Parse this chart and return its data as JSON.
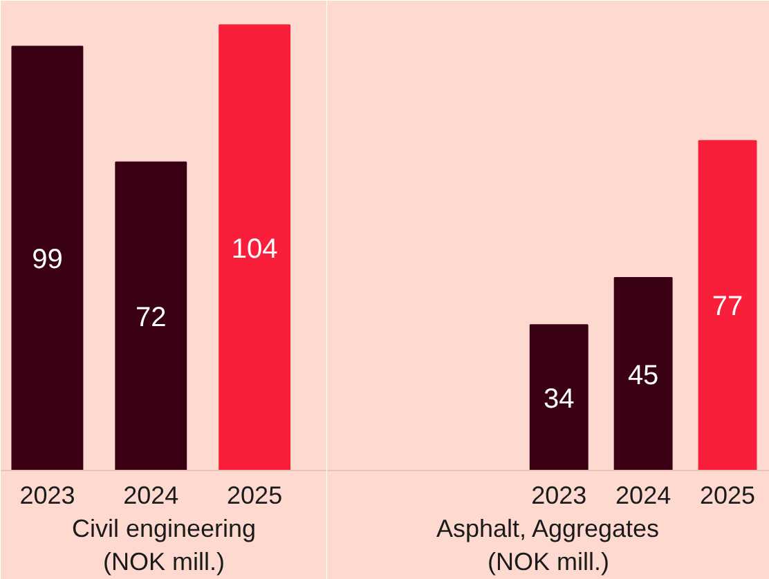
{
  "chart_data": [
    {
      "type": "bar",
      "xlabel": "Civil engineering\n(NOK mill.)",
      "categories": [
        "2023",
        "2024",
        "2025"
      ],
      "values": [
        99,
        72,
        104
      ],
      "colors": [
        "#3a0014",
        "#3a0014",
        "#f91f3a"
      ],
      "data_labels": true,
      "tick_labels": "x",
      "grid": false
    },
    {
      "type": "bar",
      "xlabel": "Asphalt, Aggregates\n(NOK mill.)",
      "categories": [
        "2023",
        "2024",
        "2025"
      ],
      "values": [
        34,
        45,
        77
      ],
      "colors": [
        "#3a0014",
        "#3a0014",
        "#f91f3a"
      ],
      "data_labels": true,
      "tick_labels": "x",
      "grid": false
    }
  ]
}
